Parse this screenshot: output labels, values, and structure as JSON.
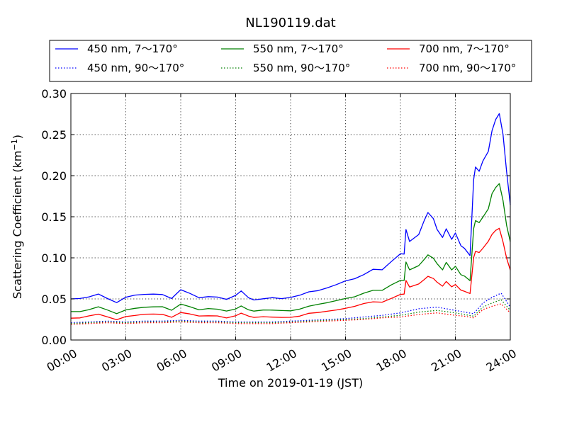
{
  "chart_data": {
    "type": "line",
    "title": "NL190119.dat",
    "xlabel": "Time on 2019-01-19 (JST)",
    "ylabel": "Scattering Coefficient (km",
    "ylabel_exponent": "−1",
    "ylabel_close": ")",
    "xlim": [
      0,
      24
    ],
    "ylim": [
      0,
      0.3
    ],
    "x_ticks": [
      0,
      3,
      6,
      9,
      12,
      15,
      18,
      21,
      24
    ],
    "x_tick_labels": [
      "00:00",
      "03:00",
      "06:00",
      "09:00",
      "12:00",
      "15:00",
      "18:00",
      "21:00",
      "24:00"
    ],
    "y_ticks": [
      0,
      0.05,
      0.1,
      0.15,
      0.2,
      0.25,
      0.3
    ],
    "y_tick_labels": [
      "0.00",
      "0.05",
      "0.10",
      "0.15",
      "0.20",
      "0.25",
      "0.30"
    ],
    "grid": true,
    "legend_position": "above-plot",
    "series": [
      {
        "name": "450 nm, 7～170°",
        "color": "#0000ff",
        "style": "solid",
        "x": [
          0,
          0.5,
          1,
          1.5,
          2,
          2.5,
          3,
          3.5,
          4,
          4.5,
          5,
          5.5,
          6,
          6.5,
          7,
          7.5,
          8,
          8.5,
          9,
          9.3,
          9.7,
          10,
          10.5,
          11,
          11.5,
          12,
          12.5,
          13,
          13.5,
          14,
          14.5,
          15,
          15.5,
          16,
          16.5,
          17,
          17.5,
          18,
          18.2,
          18.3,
          18.5,
          19,
          19.3,
          19.5,
          19.8,
          20,
          20.3,
          20.5,
          20.8,
          21,
          21.3,
          21.5,
          21.8,
          22,
          22.1,
          22.3,
          22.5,
          22.8,
          23,
          23.2,
          23.4,
          23.6,
          23.8,
          24
        ],
        "y": [
          0.05,
          0.051,
          0.053,
          0.056,
          0.05,
          0.045,
          0.052,
          0.055,
          0.056,
          0.056,
          0.055,
          0.05,
          0.061,
          0.057,
          0.052,
          0.053,
          0.052,
          0.049,
          0.054,
          0.06,
          0.052,
          0.049,
          0.05,
          0.051,
          0.05,
          0.052,
          0.055,
          0.059,
          0.06,
          0.063,
          0.067,
          0.072,
          0.075,
          0.08,
          0.086,
          0.085,
          0.095,
          0.105,
          0.105,
          0.135,
          0.12,
          0.128,
          0.145,
          0.155,
          0.148,
          0.135,
          0.125,
          0.135,
          0.122,
          0.13,
          0.115,
          0.112,
          0.103,
          0.195,
          0.21,
          0.205,
          0.218,
          0.23,
          0.255,
          0.268,
          0.275,
          0.25,
          0.205,
          0.165
        ]
      },
      {
        "name": "550 nm, 7～170°",
        "color": "#008000",
        "style": "solid",
        "x": [
          0,
          0.5,
          1,
          1.5,
          2,
          2.5,
          3,
          3.5,
          4,
          4.5,
          5,
          5.5,
          6,
          6.5,
          7,
          7.5,
          8,
          8.5,
          9,
          9.3,
          9.7,
          10,
          10.5,
          11,
          11.5,
          12,
          12.5,
          13,
          13.5,
          14,
          14.5,
          15,
          15.5,
          16,
          16.5,
          17,
          17.5,
          18,
          18.2,
          18.3,
          18.5,
          19,
          19.3,
          19.5,
          19.8,
          20,
          20.3,
          20.5,
          20.8,
          21,
          21.3,
          21.5,
          21.8,
          22,
          22.1,
          22.3,
          22.5,
          22.8,
          23,
          23.2,
          23.4,
          23.6,
          23.8,
          24
        ],
        "y": [
          0.035,
          0.035,
          0.037,
          0.04,
          0.036,
          0.032,
          0.037,
          0.039,
          0.04,
          0.04,
          0.04,
          0.036,
          0.044,
          0.041,
          0.037,
          0.038,
          0.037,
          0.035,
          0.038,
          0.042,
          0.037,
          0.035,
          0.036,
          0.036,
          0.036,
          0.036,
          0.038,
          0.041,
          0.043,
          0.045,
          0.048,
          0.051,
          0.053,
          0.057,
          0.06,
          0.06,
          0.067,
          0.073,
          0.073,
          0.095,
          0.085,
          0.09,
          0.098,
          0.104,
          0.1,
          0.093,
          0.085,
          0.094,
          0.085,
          0.09,
          0.08,
          0.078,
          0.072,
          0.135,
          0.145,
          0.143,
          0.15,
          0.16,
          0.178,
          0.185,
          0.19,
          0.17,
          0.14,
          0.12
        ]
      },
      {
        "name": "700 nm, 7～170°",
        "color": "#ff0000",
        "style": "solid",
        "x": [
          0,
          0.5,
          1,
          1.5,
          2,
          2.5,
          3,
          3.5,
          4,
          4.5,
          5,
          5.5,
          6,
          6.5,
          7,
          7.5,
          8,
          8.5,
          9,
          9.3,
          9.7,
          10,
          10.5,
          11,
          11.5,
          12,
          12.5,
          13,
          13.5,
          14,
          14.5,
          15,
          15.5,
          16,
          16.5,
          17,
          17.5,
          18,
          18.2,
          18.3,
          18.5,
          19,
          19.3,
          19.5,
          19.8,
          20,
          20.3,
          20.5,
          20.8,
          21,
          21.3,
          21.5,
          21.8,
          22,
          22.1,
          22.3,
          22.5,
          22.8,
          23,
          23.2,
          23.4,
          23.6,
          23.8,
          24
        ],
        "y": [
          0.027,
          0.027,
          0.029,
          0.031,
          0.028,
          0.025,
          0.029,
          0.03,
          0.031,
          0.031,
          0.031,
          0.028,
          0.034,
          0.032,
          0.029,
          0.029,
          0.029,
          0.027,
          0.03,
          0.033,
          0.029,
          0.027,
          0.028,
          0.028,
          0.028,
          0.028,
          0.029,
          0.032,
          0.033,
          0.035,
          0.037,
          0.039,
          0.041,
          0.044,
          0.046,
          0.046,
          0.051,
          0.056,
          0.056,
          0.072,
          0.064,
          0.068,
          0.074,
          0.078,
          0.075,
          0.07,
          0.065,
          0.071,
          0.065,
          0.068,
          0.061,
          0.059,
          0.056,
          0.1,
          0.108,
          0.107,
          0.112,
          0.12,
          0.128,
          0.133,
          0.136,
          0.12,
          0.1,
          0.085
        ]
      },
      {
        "name": "450 nm, 90～170°",
        "color": "#0000ff",
        "style": "dotted",
        "x": [
          0,
          1,
          2,
          3,
          4,
          5,
          6,
          7,
          8,
          9,
          10,
          11,
          12,
          13,
          14,
          15,
          16,
          17,
          18,
          19,
          20,
          21,
          21.5,
          22,
          22.5,
          23,
          23.5,
          24
        ],
        "y": [
          0.021,
          0.022,
          0.023,
          0.022,
          0.023,
          0.023,
          0.024,
          0.023,
          0.023,
          0.022,
          0.022,
          0.022,
          0.023,
          0.024,
          0.025,
          0.026,
          0.028,
          0.03,
          0.033,
          0.038,
          0.04,
          0.036,
          0.034,
          0.032,
          0.045,
          0.052,
          0.057,
          0.04
        ]
      },
      {
        "name": "550 nm, 90～170°",
        "color": "#008000",
        "style": "dotted",
        "x": [
          0,
          1,
          2,
          3,
          4,
          5,
          6,
          7,
          8,
          9,
          10,
          11,
          12,
          13,
          14,
          15,
          16,
          17,
          18,
          19,
          20,
          21,
          21.5,
          22,
          22.5,
          23,
          23.5,
          24
        ],
        "y": [
          0.02,
          0.021,
          0.022,
          0.021,
          0.022,
          0.022,
          0.023,
          0.022,
          0.022,
          0.021,
          0.021,
          0.021,
          0.022,
          0.023,
          0.024,
          0.025,
          0.026,
          0.028,
          0.03,
          0.034,
          0.036,
          0.033,
          0.031,
          0.029,
          0.04,
          0.045,
          0.049,
          0.036
        ]
      },
      {
        "name": "700 nm, 90～170°",
        "color": "#ff0000",
        "style": "dotted",
        "x": [
          0,
          1,
          2,
          3,
          4,
          5,
          6,
          7,
          8,
          9,
          10,
          11,
          12,
          13,
          14,
          15,
          16,
          17,
          18,
          19,
          20,
          21,
          21.5,
          22,
          22.5,
          23,
          23.5,
          24
        ],
        "y": [
          0.019,
          0.02,
          0.021,
          0.02,
          0.021,
          0.021,
          0.022,
          0.021,
          0.021,
          0.02,
          0.02,
          0.02,
          0.021,
          0.022,
          0.023,
          0.024,
          0.025,
          0.027,
          0.028,
          0.031,
          0.033,
          0.03,
          0.029,
          0.027,
          0.037,
          0.041,
          0.044,
          0.033
        ]
      }
    ]
  }
}
